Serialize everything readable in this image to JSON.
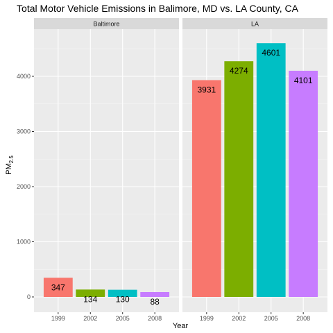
{
  "chart_data": {
    "type": "bar",
    "title": "Total Motor Vehicle Emissions in Balimore, MD vs. LA County, CA",
    "xlabel": "Year",
    "ylabel_main": "PM",
    "ylabel_sub": "2.5",
    "ylim": [
      0,
      4830
    ],
    "y_ticks": [
      0,
      1000,
      2000,
      3000,
      4000
    ],
    "y_tick_labels": [
      "0",
      "1000",
      "2000",
      "3000",
      "4000"
    ],
    "categories": [
      "1999",
      "2002",
      "2005",
      "2008"
    ],
    "colors": [
      "#F8766D",
      "#7CAE00",
      "#00BFC4",
      "#C77CFF"
    ],
    "grid": true,
    "legend": "none",
    "panels": [
      {
        "name": "Baltimore",
        "values": [
          347,
          134,
          130,
          88
        ],
        "labels": [
          "347",
          "134",
          "130",
          "88"
        ]
      },
      {
        "name": "LA",
        "values": [
          3931,
          4274,
          4601,
          4101
        ],
        "labels": [
          "3931",
          "4274",
          "4601",
          "4101"
        ]
      }
    ]
  }
}
